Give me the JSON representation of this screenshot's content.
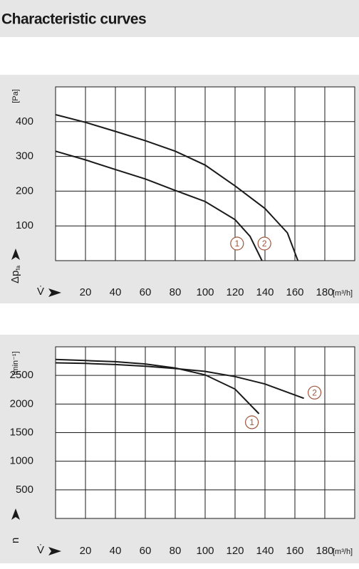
{
  "header": {
    "title": "Characteristic curves"
  },
  "chart_data": [
    {
      "type": "line",
      "x_label": "V̇",
      "x_unit": "[m³/h]",
      "y_label": "Δp",
      "y_label_sub": "fa",
      "y_unit": "[Pa]",
      "xlim": [
        0,
        200
      ],
      "ylim": [
        0,
        500
      ],
      "xticks": [
        20,
        40,
        60,
        80,
        100,
        120,
        140,
        160,
        180
      ],
      "yticks": [
        100,
        200,
        300,
        400
      ],
      "grid": true,
      "marker_color": "#a0553a",
      "series": [
        {
          "name": "1",
          "color": "#1a1a1a",
          "x": [
            0,
            20,
            40,
            60,
            80,
            100,
            120,
            130,
            138
          ],
          "values": [
            315,
            290,
            262,
            235,
            202,
            170,
            118,
            70,
            0
          ]
        },
        {
          "name": "2",
          "color": "#1a1a1a",
          "x": [
            0,
            20,
            40,
            60,
            80,
            100,
            120,
            140,
            155,
            162
          ],
          "values": [
            420,
            398,
            372,
            345,
            315,
            275,
            215,
            150,
            80,
            0
          ]
        }
      ]
    },
    {
      "type": "line",
      "x_label": "V̇",
      "x_unit": "[m³/h]",
      "y_label": "n",
      "y_unit": "[min⁻¹]",
      "xlim": [
        0,
        200
      ],
      "ylim": [
        0,
        3000
      ],
      "xticks": [
        20,
        40,
        60,
        80,
        100,
        120,
        140,
        160,
        180
      ],
      "yticks": [
        500,
        1000,
        1500,
        2000,
        2500
      ],
      "grid": true,
      "marker_color": "#a0553a",
      "series": [
        {
          "name": "1",
          "color": "#1a1a1a",
          "x": [
            0,
            20,
            40,
            60,
            80,
            100,
            120,
            136
          ],
          "values": [
            2780,
            2760,
            2740,
            2700,
            2630,
            2510,
            2260,
            1830
          ]
        },
        {
          "name": "2",
          "color": "#1a1a1a",
          "x": [
            0,
            20,
            40,
            60,
            80,
            100,
            120,
            140,
            166
          ],
          "values": [
            2720,
            2710,
            2690,
            2660,
            2620,
            2570,
            2480,
            2350,
            2100
          ]
        }
      ]
    }
  ]
}
